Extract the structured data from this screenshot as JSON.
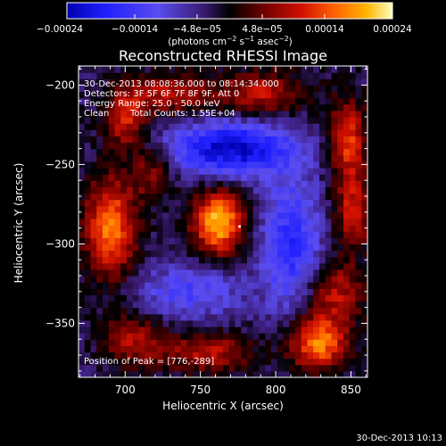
{
  "chart_data": {
    "type": "heatmap",
    "title": "Reconstructed RHESSI Image",
    "xlabel": "Heliocentric X (arcsec)",
    "ylabel": "Heliocentric Y (arcsec)",
    "xlim": [
      669,
      861
    ],
    "ylim": [
      -384,
      -188
    ],
    "x_ticks": [
      700,
      750,
      800,
      850
    ],
    "y_ticks": [
      -350,
      -300,
      -250,
      -200
    ],
    "x_tick_labels": [
      "700",
      "750",
      "800",
      "850"
    ],
    "y_tick_labels": [
      "−350",
      "−300",
      "−250",
      "−200"
    ],
    "colorbar": {
      "range": [
        -0.00024,
        0.00024
      ],
      "ticks": [
        -0.00024,
        -0.00014,
        -4.8e-05,
        4.8e-05,
        0.00014,
        0.00024
      ],
      "tick_labels": [
        "−0.00024",
        "−0.00014",
        "−4.8e−05",
        "4.8e−05",
        "0.00014",
        "0.00024"
      ],
      "units_text": "(photons cm",
      "units_exp1": "−2",
      "units_mid": " s",
      "units_exp2": "−1",
      "units_mid2": " asec",
      "units_exp3": "−2",
      "units_close": ")"
    },
    "annotations": [
      "30-Dec-2013 08:08:36.000 to 08:14:34.000",
      "Detectors: 3F 5F 6F 7F 8F 9F, Att 0",
      "Energy Range: 25.0 - 50.0 keV",
      "Clean",
      "Total Counts: 1.55E+04"
    ],
    "peak_label": "Position of Peak = [776,-289]",
    "peak": [
      776,
      -289
    ],
    "sources": [
      {
        "x": 762,
        "y": -286,
        "peak": 0.00024,
        "sx": 12,
        "sy": 14
      },
      {
        "x": 690,
        "y": -290,
        "peak": 0.0002,
        "sx": 12,
        "sy": 22
      },
      {
        "x": 700,
        "y": -220,
        "peak": 0.00014,
        "sx": 10,
        "sy": 14
      },
      {
        "x": 730,
        "y": -205,
        "peak": 0.00012,
        "sx": 18,
        "sy": 9
      },
      {
        "x": 790,
        "y": -205,
        "peak": 0.00012,
        "sx": 22,
        "sy": 10
      },
      {
        "x": 848,
        "y": -235,
        "peak": 0.00016,
        "sx": 9,
        "sy": 18
      },
      {
        "x": 852,
        "y": -280,
        "peak": 0.00013,
        "sx": 9,
        "sy": 16
      },
      {
        "x": 840,
        "y": -330,
        "peak": 0.00012,
        "sx": 14,
        "sy": 14
      },
      {
        "x": 828,
        "y": -362,
        "peak": 0.0002,
        "sx": 14,
        "sy": 12
      },
      {
        "x": 755,
        "y": -368,
        "peak": 0.00012,
        "sx": 22,
        "sy": 9
      },
      {
        "x": 705,
        "y": -360,
        "peak": 0.00011,
        "sx": 14,
        "sy": 12
      },
      {
        "x": 718,
        "y": -255,
        "peak": 0.0001,
        "sx": 10,
        "sy": 12
      }
    ],
    "negative_regions": [
      {
        "x": 770,
        "y": -240,
        "peak": -0.0002,
        "sx": 30,
        "sy": 12
      },
      {
        "x": 810,
        "y": -300,
        "peak": -0.00014,
        "sx": 14,
        "sy": 30
      },
      {
        "x": 742,
        "y": -330,
        "peak": -0.0001,
        "sx": 25,
        "sy": 12
      }
    ]
  },
  "footer_date": "30-Dec-2013 10:13"
}
